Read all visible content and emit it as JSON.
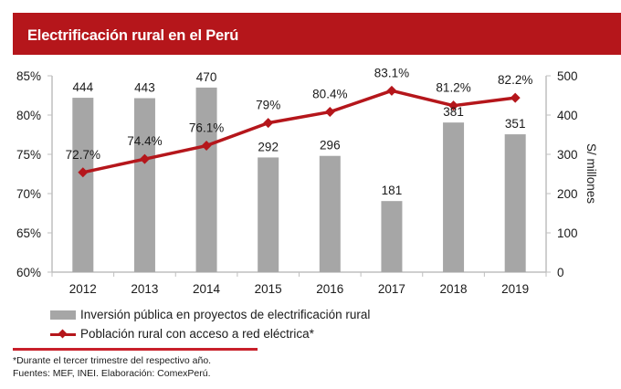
{
  "header": {
    "title": "Electrificación rural en el Perú"
  },
  "colors": {
    "accent": "#b5161b",
    "bar": "#a6a6a6",
    "axis": "#bfbfbf"
  },
  "chart_data": {
    "type": "bar+line",
    "title": "Electrificación rural en el Perú",
    "categories": [
      "2012",
      "2013",
      "2014",
      "2015",
      "2016",
      "2017",
      "2018",
      "2019"
    ],
    "series": [
      {
        "name": "Inversión pública en proyectos de electrificación rural",
        "type": "bar",
        "axis": "right",
        "values": [
          444,
          443,
          470,
          292,
          296,
          181,
          381,
          351
        ],
        "labels": [
          "444",
          "443",
          "470",
          "292",
          "296",
          "181",
          "381",
          "351"
        ]
      },
      {
        "name": "Población rural con acceso a red eléctrica*",
        "type": "line",
        "axis": "left",
        "values": [
          72.7,
          74.4,
          76.1,
          79.0,
          80.4,
          83.1,
          81.2,
          82.2
        ],
        "labels": [
          "72.7%",
          "74.4%",
          "76.1%",
          "79%",
          "80.4%",
          "83.1%",
          "81.2%",
          "82.2%"
        ]
      }
    ],
    "left_axis": {
      "ylim": [
        60,
        85
      ],
      "ticks": [
        60,
        65,
        70,
        75,
        80,
        85
      ],
      "tick_labels": [
        "60%",
        "65%",
        "70%",
        "75%",
        "80%",
        "85%"
      ]
    },
    "right_axis": {
      "ylim": [
        0,
        500
      ],
      "ticks": [
        0,
        100,
        200,
        300,
        400,
        500
      ],
      "tick_labels": [
        "0",
        "100",
        "200",
        "300",
        "400",
        "500"
      ],
      "label": "S/ millones"
    },
    "xlabel": "",
    "grid": false,
    "legend": "bottom"
  },
  "legend": {
    "bar_label": "Inversión pública en proyectos de electrificación rural",
    "line_label": "Población rural con acceso a red eléctrica*"
  },
  "notes": {
    "line1": "*Durante el tercer trimestre del respectivo año.",
    "line2": "Fuentes: MEF, INEI. Elaboración: ComexPerú."
  }
}
